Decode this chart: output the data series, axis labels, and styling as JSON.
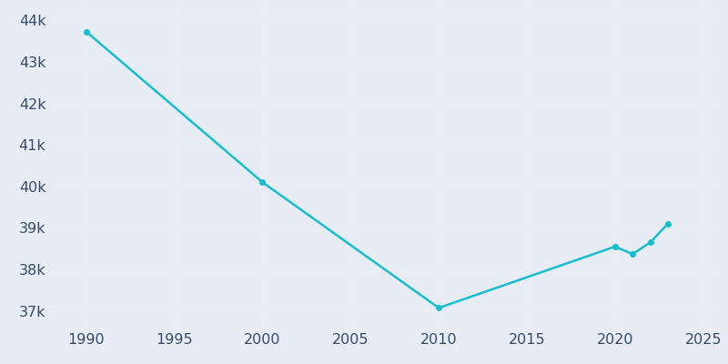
{
  "years": [
    1990,
    2000,
    2010,
    2020,
    2021,
    2022,
    2023
  ],
  "population": [
    43726,
    40100,
    37074,
    38550,
    38370,
    38650,
    39100
  ],
  "line_color": "#17BECF",
  "marker_color": "#17BECF",
  "background_color": "#e8edf5",
  "plot_background_color": "#dce3f0",
  "grid_color": "#eaeff7",
  "xlim": [
    1988,
    2026
  ],
  "ylim": [
    36600,
    44400
  ],
  "yticks": [
    37000,
    38000,
    39000,
    40000,
    41000,
    42000,
    43000,
    44000
  ],
  "xticks": [
    1990,
    1995,
    2000,
    2005,
    2010,
    2015,
    2020,
    2025
  ],
  "tick_color": "#3a4a6a",
  "tick_fontsize": 11.5,
  "linewidth": 1.8,
  "markersize": 4
}
